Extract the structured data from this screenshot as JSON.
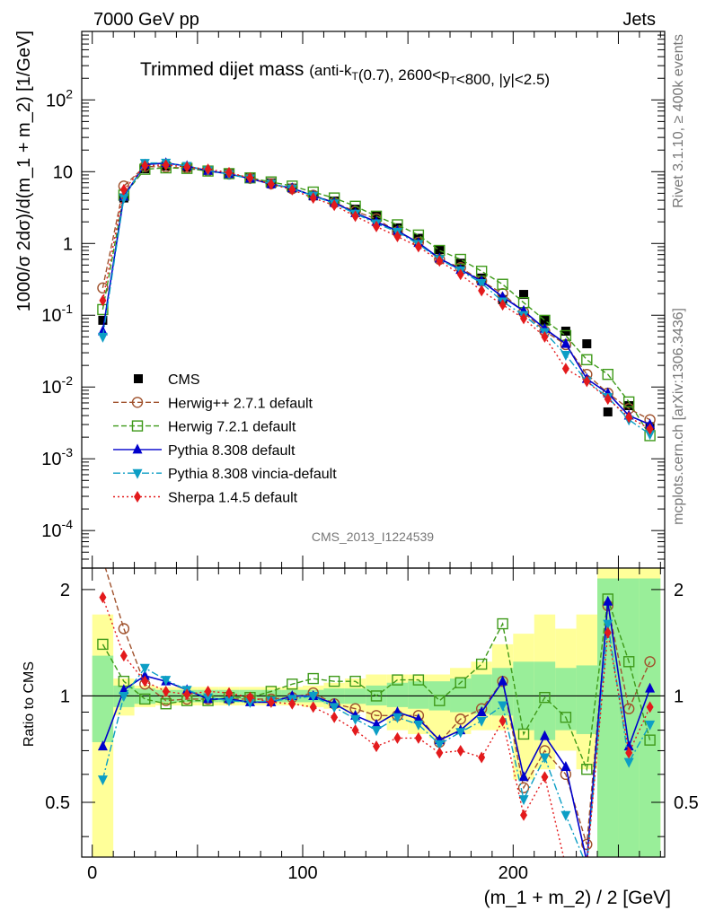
{
  "header": {
    "left": "7000 GeV pp",
    "right": "Jets"
  },
  "side_labels": {
    "rivet": "Rivet 3.1.10, ≥ 400k events",
    "mcplots": "mcplots.cern.ch [arXiv:1306.3436]"
  },
  "chart_data": {
    "type": "line",
    "title_main": "Trimmed dijet mass",
    "title_cuts": "(anti-k_T(0.7), 2600<p_T<800, |y|<2.5)",
    "analysis_id": "CMS_2013_I1224539",
    "xlabel": "(m_1 + m_2) / 2 [GeV]",
    "ylabel": "1000/σ 2dσ)/d(m_1 + m_2) [1/GeV]",
    "ratio_ylabel": "Ratio to CMS",
    "xlim": [
      -5,
      272
    ],
    "ylim": [
      3e-05,
      900
    ],
    "yscale": "log",
    "ratio_ylim": [
      0.35,
      2.3
    ],
    "x_ticks": [
      0,
      100,
      200
    ],
    "y_ticks": [
      {
        "value": 0.0001,
        "base": "10",
        "exp": "-4"
      },
      {
        "value": 0.001,
        "base": "10",
        "exp": "-3"
      },
      {
        "value": 0.01,
        "base": "10",
        "exp": "-2"
      },
      {
        "value": 0.1,
        "base": "10",
        "exp": "-1"
      },
      {
        "value": 1,
        "base": "1",
        "exp": ""
      },
      {
        "value": 10,
        "base": "10",
        "exp": ""
      },
      {
        "value": 100,
        "base": "10",
        "exp": "2"
      }
    ],
    "ratio_ticks": [
      {
        "value": 0.5,
        "label": "0.5"
      },
      {
        "value": 1,
        "label": "1"
      },
      {
        "value": 2,
        "label": "2"
      }
    ],
    "legend_position": "lower-left",
    "x": [
      5,
      15,
      25,
      35,
      45,
      55,
      65,
      75,
      85,
      95,
      105,
      115,
      125,
      135,
      145,
      155,
      165,
      175,
      185,
      195,
      205,
      215,
      225,
      235,
      245,
      255,
      265
    ],
    "series": [
      {
        "name": "CMS",
        "style": "data",
        "color": "#000000",
        "values": [
          0.085,
          4.3,
          11.0,
          12.0,
          11.5,
          10.5,
          9.5,
          8.3,
          7.0,
          5.9,
          4.6,
          3.9,
          3.0,
          2.4,
          1.65,
          1.18,
          0.82,
          0.53,
          0.33,
          0.165,
          0.195,
          0.085,
          0.06,
          0.04,
          0.0045,
          0.0055,
          0.0028
        ]
      },
      {
        "name": "Herwig++ 2.7.1 default",
        "style": "dashed",
        "color": "#a0522d",
        "marker": "circle-open",
        "values": [
          0.24,
          6.3,
          11.8,
          11.6,
          11.2,
          10.3,
          9.3,
          8.1,
          6.8,
          5.8,
          4.7,
          3.7,
          2.8,
          2.2,
          1.45,
          1.04,
          0.6,
          0.46,
          0.3,
          0.2,
          0.11,
          0.06,
          0.039,
          0.015,
          0.0082,
          0.005,
          0.0035
        ]
      },
      {
        "name": "Herwig 7.2.1 default",
        "style": "dashed",
        "color": "#3f9a1a",
        "marker": "square-open",
        "values": [
          0.12,
          4.7,
          10.8,
          11.3,
          11.1,
          10.2,
          9.4,
          8.2,
          7.2,
          6.3,
          5.2,
          4.3,
          3.3,
          2.4,
          1.82,
          1.31,
          0.8,
          0.6,
          0.41,
          0.27,
          0.15,
          0.085,
          0.052,
          0.024,
          0.015,
          0.0062,
          0.0021
        ]
      },
      {
        "name": "Pythia 8.308 default",
        "style": "solid",
        "color": "#0000cc",
        "marker": "triangle-up",
        "values": [
          0.06,
          4.5,
          12.6,
          13.2,
          12.0,
          10.3,
          9.3,
          8.0,
          6.7,
          5.9,
          4.6,
          3.7,
          2.65,
          2.0,
          1.5,
          1.02,
          0.62,
          0.43,
          0.3,
          0.18,
          0.115,
          0.065,
          0.04,
          0.013,
          0.0082,
          0.004,
          0.003
        ]
      },
      {
        "name": "Pythia 8.308 vincia-default",
        "style": "dashdot",
        "color": "#0c9ec5",
        "marker": "triangle-down",
        "values": [
          0.05,
          4.3,
          13.2,
          13.3,
          12.0,
          10.4,
          9.2,
          8.0,
          6.8,
          5.8,
          4.6,
          3.6,
          2.6,
          1.9,
          1.45,
          0.98,
          0.6,
          0.42,
          0.28,
          0.155,
          0.1,
          0.058,
          0.028,
          0.012,
          0.0072,
          0.0035,
          0.0022
        ]
      },
      {
        "name": "Sherpa 1.4.5 default",
        "style": "dotted",
        "color": "#e31a1c",
        "marker": "diamond",
        "values": [
          0.16,
          5.6,
          12.1,
          12.4,
          11.6,
          10.8,
          9.7,
          8.2,
          6.7,
          5.6,
          4.3,
          3.4,
          2.4,
          1.72,
          1.25,
          0.9,
          0.57,
          0.37,
          0.22,
          0.14,
          0.09,
          0.05,
          0.018,
          0.012,
          0.0068,
          0.0038,
          0.0026
        ]
      }
    ],
    "ratios": [
      {
        "name": "Herwig++ 2.7.1 default",
        "values": [
          2.7,
          1.55,
          1.08,
          0.97,
          0.98,
          0.98,
          0.98,
          0.98,
          0.98,
          0.99,
          1.02,
          0.95,
          0.92,
          0.88,
          0.88,
          0.88,
          0.74,
          0.86,
          0.92,
          1.1,
          0.55,
          0.7,
          0.6,
          0.38,
          1.8,
          0.92,
          1.25
        ]
      },
      {
        "name": "Herwig 7.2.1 default",
        "values": [
          1.4,
          1.1,
          0.98,
          0.95,
          0.97,
          0.97,
          0.99,
          0.99,
          1.03,
          1.08,
          1.12,
          1.1,
          1.1,
          1.0,
          1.11,
          1.11,
          0.97,
          1.09,
          1.23,
          1.6,
          0.78,
          0.99,
          0.87,
          0.62,
          1.88,
          1.25,
          0.75
        ]
      },
      {
        "name": "Pythia 8.308 default",
        "values": [
          0.72,
          1.04,
          1.14,
          1.1,
          1.04,
          0.98,
          0.98,
          0.96,
          0.96,
          1.0,
          1.0,
          0.95,
          0.88,
          0.83,
          0.9,
          0.86,
          0.75,
          0.8,
          0.9,
          1.1,
          0.59,
          0.77,
          0.63,
          0.34,
          1.85,
          0.72,
          1.05
        ]
      },
      {
        "name": "Pythia 8.308 vincia-default",
        "values": [
          0.58,
          1.0,
          1.2,
          1.11,
          1.04,
          0.99,
          0.97,
          0.96,
          0.97,
          0.98,
          1.0,
          0.93,
          0.86,
          0.8,
          0.87,
          0.83,
          0.73,
          0.79,
          0.85,
          0.94,
          0.51,
          0.67,
          0.46,
          0.3,
          1.6,
          0.65,
          0.83
        ]
      },
      {
        "name": "Sherpa 1.4.5 default",
        "values": [
          1.9,
          1.3,
          1.1,
          1.03,
          1.01,
          1.03,
          1.02,
          0.99,
          0.96,
          0.95,
          0.93,
          0.87,
          0.8,
          0.72,
          0.76,
          0.76,
          0.69,
          0.7,
          0.67,
          0.85,
          0.46,
          0.59,
          0.3,
          0.3,
          1.51,
          0.69,
          0.93
        ]
      }
    ],
    "uncertainty_bands": {
      "inner_color": "#99ee99",
      "outer_color": "#ffff99",
      "bins": [
        [
          0,
          10
        ],
        [
          10,
          20
        ],
        [
          20,
          30
        ],
        [
          30,
          40
        ],
        [
          40,
          50
        ],
        [
          50,
          60
        ],
        [
          60,
          70
        ],
        [
          70,
          80
        ],
        [
          80,
          90
        ],
        [
          90,
          100
        ],
        [
          100,
          110
        ],
        [
          110,
          120
        ],
        [
          120,
          130
        ],
        [
          130,
          140
        ],
        [
          140,
          150
        ],
        [
          150,
          160
        ],
        [
          160,
          170
        ],
        [
          170,
          180
        ],
        [
          180,
          190
        ],
        [
          190,
          200
        ],
        [
          200,
          210
        ],
        [
          210,
          220
        ],
        [
          220,
          230
        ],
        [
          230,
          240
        ],
        [
          240,
          250
        ],
        [
          250,
          260
        ],
        [
          260,
          270
        ]
      ],
      "inner_lo": [
        0.74,
        0.93,
        0.95,
        0.96,
        0.96,
        0.96,
        0.96,
        0.96,
        0.96,
        0.96,
        0.96,
        0.95,
        0.95,
        0.94,
        0.93,
        0.92,
        0.91,
        0.9,
        0.89,
        0.88,
        0.8,
        0.75,
        0.8,
        0.78,
        0.35,
        0.35,
        0.35
      ],
      "inner_hi": [
        1.3,
        1.07,
        1.05,
        1.04,
        1.04,
        1.04,
        1.04,
        1.04,
        1.04,
        1.04,
        1.04,
        1.05,
        1.05,
        1.07,
        1.09,
        1.1,
        1.1,
        1.12,
        1.15,
        1.2,
        1.25,
        1.25,
        1.2,
        1.22,
        2.15,
        2.15,
        2.15
      ],
      "outer_lo": [
        0.35,
        0.88,
        0.93,
        0.94,
        0.94,
        0.94,
        0.94,
        0.94,
        0.94,
        0.94,
        0.93,
        0.92,
        0.9,
        0.85,
        0.8,
        0.78,
        0.76,
        0.78,
        0.8,
        0.8,
        0.58,
        0.62,
        0.7,
        0.62,
        0.35,
        0.35,
        0.35
      ],
      "outer_hi": [
        1.7,
        1.12,
        1.07,
        1.06,
        1.06,
        1.06,
        1.06,
        1.06,
        1.06,
        1.06,
        1.07,
        1.09,
        1.12,
        1.15,
        1.15,
        1.15,
        1.15,
        1.2,
        1.25,
        1.4,
        1.5,
        1.7,
        1.55,
        1.7,
        2.3,
        2.3,
        2.3
      ]
    }
  }
}
